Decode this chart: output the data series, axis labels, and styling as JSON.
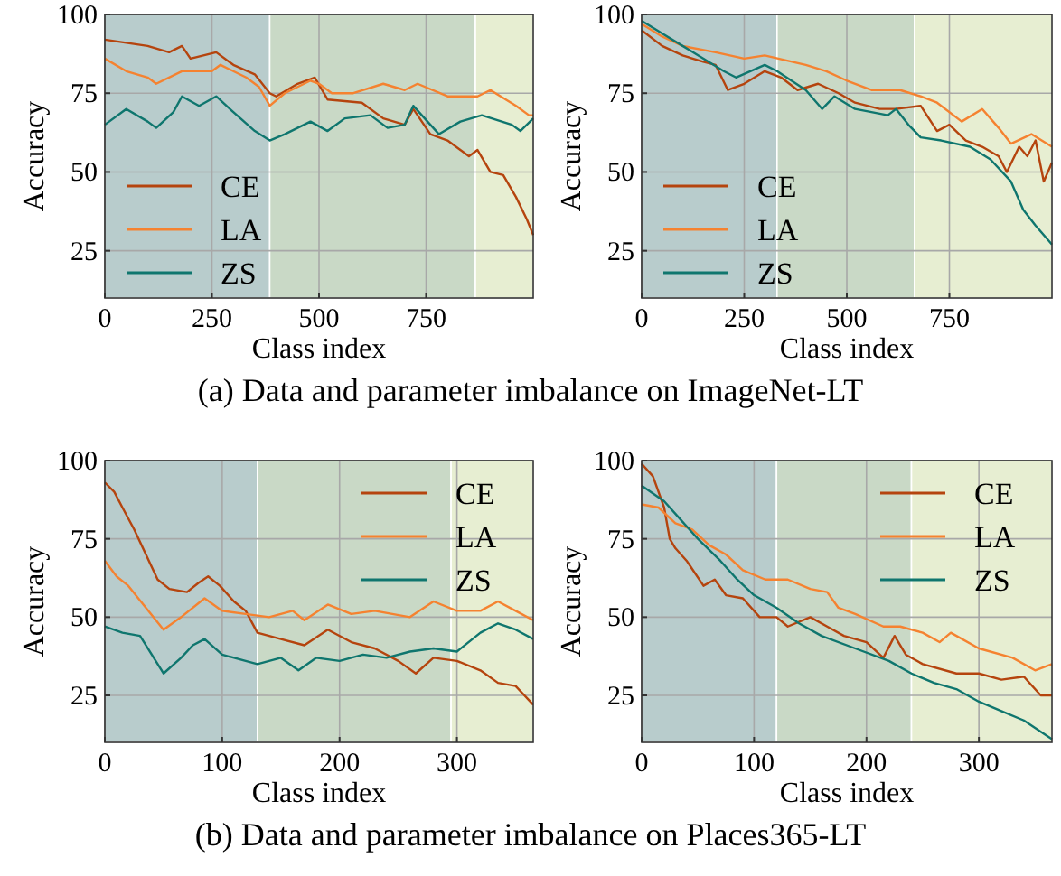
{
  "chart_data": [
    {
      "type": "line",
      "xlabel": "Class index",
      "ylabel": "Accuracy",
      "xlim": [
        0,
        1000
      ],
      "xticks": [
        0,
        250,
        500,
        750
      ],
      "ylim": [
        10,
        100
      ],
      "yticks": [
        25,
        50,
        75,
        100
      ],
      "grid": true,
      "legend": "bottom left",
      "annotations": [
        "(a)  Data and parameter imbalance on ImageNet-LT"
      ],
      "bands": [
        {
          "axis": "x",
          "from": 0,
          "to": 385,
          "color": "#b8cccc"
        },
        {
          "axis": "x",
          "from": 385,
          "to": 865,
          "color": "#c9d9c6"
        },
        {
          "axis": "x",
          "from": 865,
          "to": 1000,
          "color": "#e7eed2"
        }
      ],
      "series": [
        {
          "name": "CE",
          "color": "#b5440e",
          "x": [
            0,
            50,
            100,
            150,
            180,
            200,
            260,
            300,
            350,
            385,
            400,
            450,
            490,
            520,
            600,
            650,
            700,
            720,
            760,
            800,
            850,
            870,
            900,
            930,
            960,
            985,
            1000
          ],
          "values": [
            92,
            91,
            90,
            88,
            90,
            86,
            88,
            84,
            81,
            75,
            74,
            78,
            80,
            73,
            72,
            67,
            65,
            70,
            62,
            60,
            55,
            57,
            50,
            49,
            42,
            35,
            30
          ]
        },
        {
          "name": "LA",
          "color": "#f58230",
          "x": [
            0,
            50,
            100,
            120,
            180,
            250,
            270,
            330,
            360,
            385,
            420,
            480,
            500,
            530,
            580,
            650,
            700,
            730,
            800,
            870,
            900,
            960,
            990,
            1000
          ],
          "values": [
            86,
            82,
            80,
            78,
            82,
            82,
            84,
            80,
            77,
            71,
            75,
            79,
            78,
            75,
            75,
            78,
            76,
            78,
            74,
            74,
            76,
            71,
            68,
            68
          ]
        },
        {
          "name": "ZS",
          "color": "#0f766e",
          "x": [
            0,
            50,
            100,
            120,
            160,
            180,
            220,
            260,
            300,
            350,
            385,
            420,
            480,
            520,
            560,
            620,
            660,
            700,
            720,
            760,
            780,
            830,
            880,
            950,
            970,
            1000
          ],
          "values": [
            65,
            70,
            66,
            64,
            69,
            74,
            71,
            74,
            69,
            63,
            60,
            62,
            66,
            63,
            67,
            68,
            64,
            65,
            71,
            65,
            62,
            66,
            68,
            65,
            63,
            67
          ]
        }
      ]
    },
    {
      "type": "line",
      "xlabel": "Class index",
      "ylabel": "Accuracy",
      "xlim": [
        0,
        1000
      ],
      "xticks": [
        0,
        250,
        500,
        750
      ],
      "ylim": [
        10,
        100
      ],
      "yticks": [
        25,
        50,
        75,
        100
      ],
      "grid": true,
      "legend": "bottom left",
      "bands": [
        {
          "axis": "x",
          "from": 0,
          "to": 330,
          "color": "#b8cccc"
        },
        {
          "axis": "x",
          "from": 330,
          "to": 665,
          "color": "#c9d9c6"
        },
        {
          "axis": "x",
          "from": 665,
          "to": 1000,
          "color": "#e7eed2"
        }
      ],
      "series": [
        {
          "name": "CE",
          "color": "#b5440e",
          "x": [
            0,
            50,
            100,
            150,
            180,
            210,
            250,
            300,
            340,
            380,
            430,
            480,
            520,
            580,
            620,
            680,
            720,
            750,
            790,
            830,
            870,
            890,
            920,
            940,
            960,
            980,
            1000
          ],
          "values": [
            95,
            90,
            87,
            85,
            84,
            76,
            78,
            82,
            80,
            76,
            78,
            75,
            72,
            70,
            70,
            71,
            63,
            65,
            60,
            58,
            55,
            50,
            58,
            55,
            60,
            47,
            53
          ]
        },
        {
          "name": "LA",
          "color": "#f58230",
          "x": [
            0,
            50,
            100,
            180,
            250,
            300,
            400,
            450,
            500,
            560,
            630,
            680,
            720,
            780,
            830,
            870,
            900,
            950,
            1000
          ],
          "values": [
            97,
            93,
            90,
            88,
            86,
            87,
            84,
            82,
            79,
            76,
            76,
            74,
            72,
            66,
            70,
            64,
            59,
            62,
            58
          ]
        },
        {
          "name": "ZS",
          "color": "#0f766e",
          "x": [
            0,
            50,
            100,
            150,
            200,
            230,
            300,
            330,
            400,
            440,
            470,
            520,
            600,
            620,
            650,
            680,
            730,
            800,
            850,
            900,
            930,
            960,
            1000
          ],
          "values": [
            98,
            94,
            90,
            86,
            82,
            80,
            84,
            82,
            76,
            70,
            74,
            70,
            68,
            70,
            65,
            61,
            60,
            58,
            54,
            47,
            38,
            33,
            27
          ]
        }
      ]
    },
    {
      "type": "line",
      "xlabel": "Class index",
      "ylabel": "Accuracy",
      "xlim": [
        0,
        365
      ],
      "xticks": [
        0,
        100,
        200,
        300
      ],
      "ylim": [
        10,
        100
      ],
      "yticks": [
        25,
        50,
        75,
        100
      ],
      "grid": true,
      "legend": "top right",
      "annotations": [
        "(b)  Data and parameter imbalance on Places365-LT"
      ],
      "bands": [
        {
          "axis": "x",
          "from": 0,
          "to": 130,
          "color": "#b8cccc"
        },
        {
          "axis": "x",
          "from": 130,
          "to": 295,
          "color": "#c9d9c6"
        },
        {
          "axis": "x",
          "from": 295,
          "to": 365,
          "color": "#e7eed2"
        }
      ],
      "series": [
        {
          "name": "CE",
          "color": "#b5440e",
          "x": [
            0,
            8,
            15,
            25,
            35,
            45,
            55,
            70,
            80,
            88,
            98,
            110,
            120,
            130,
            150,
            170,
            190,
            210,
            230,
            250,
            265,
            280,
            300,
            320,
            335,
            350,
            365
          ],
          "values": [
            93,
            90,
            85,
            78,
            70,
            62,
            59,
            58,
            61,
            63,
            60,
            55,
            52,
            45,
            43,
            41,
            46,
            42,
            40,
            36,
            32,
            37,
            36,
            33,
            29,
            28,
            22
          ]
        },
        {
          "name": "LA",
          "color": "#f58230",
          "x": [
            0,
            10,
            20,
            35,
            50,
            65,
            85,
            100,
            120,
            140,
            160,
            170,
            190,
            210,
            230,
            260,
            280,
            300,
            320,
            335,
            350,
            365
          ],
          "values": [
            68,
            63,
            60,
            53,
            46,
            50,
            56,
            52,
            51,
            50,
            52,
            49,
            54,
            51,
            52,
            50,
            55,
            52,
            52,
            55,
            52,
            49
          ]
        },
        {
          "name": "ZS",
          "color": "#0f766e",
          "x": [
            0,
            15,
            30,
            50,
            65,
            75,
            85,
            100,
            120,
            130,
            150,
            165,
            180,
            200,
            220,
            240,
            260,
            280,
            300,
            320,
            335,
            350,
            365
          ],
          "values": [
            47,
            45,
            44,
            32,
            37,
            41,
            43,
            38,
            36,
            35,
            37,
            33,
            37,
            36,
            38,
            37,
            39,
            40,
            39,
            45,
            48,
            46,
            43
          ]
        }
      ]
    },
    {
      "type": "line",
      "xlabel": "Class index",
      "ylabel": "Accuracy",
      "xlim": [
        0,
        365
      ],
      "xticks": [
        0,
        100,
        200,
        300
      ],
      "ylim": [
        10,
        100
      ],
      "yticks": [
        25,
        50,
        75,
        100
      ],
      "grid": true,
      "legend": "top right",
      "bands": [
        {
          "axis": "x",
          "from": 0,
          "to": 120,
          "color": "#b8cccc"
        },
        {
          "axis": "x",
          "from": 120,
          "to": 240,
          "color": "#c9d9c6"
        },
        {
          "axis": "x",
          "from": 240,
          "to": 365,
          "color": "#e7eed2"
        }
      ],
      "series": [
        {
          "name": "CE",
          "color": "#b5440e",
          "x": [
            0,
            10,
            20,
            25,
            30,
            40,
            55,
            65,
            75,
            90,
            105,
            120,
            130,
            150,
            165,
            180,
            200,
            215,
            225,
            235,
            250,
            280,
            300,
            320,
            340,
            355,
            365
          ],
          "values": [
            99,
            95,
            85,
            75,
            72,
            68,
            60,
            62,
            57,
            56,
            50,
            50,
            47,
            50,
            47,
            44,
            42,
            37,
            44,
            38,
            35,
            32,
            32,
            30,
            31,
            25,
            25
          ]
        },
        {
          "name": "LA",
          "color": "#f58230",
          "x": [
            0,
            15,
            30,
            45,
            60,
            75,
            90,
            110,
            130,
            150,
            165,
            175,
            190,
            215,
            230,
            250,
            265,
            275,
            300,
            330,
            350,
            365
          ],
          "values": [
            86,
            85,
            80,
            78,
            73,
            70,
            65,
            62,
            62,
            59,
            58,
            53,
            51,
            47,
            47,
            45,
            42,
            45,
            40,
            37,
            33,
            35
          ]
        },
        {
          "name": "ZS",
          "color": "#0f766e",
          "x": [
            0,
            20,
            35,
            50,
            70,
            85,
            100,
            120,
            140,
            160,
            190,
            220,
            240,
            260,
            280,
            300,
            320,
            340,
            365
          ],
          "values": [
            92,
            87,
            81,
            75,
            68,
            62,
            57,
            53,
            48,
            44,
            40,
            36,
            32,
            29,
            27,
            23,
            20,
            17,
            11
          ]
        }
      ]
    }
  ]
}
